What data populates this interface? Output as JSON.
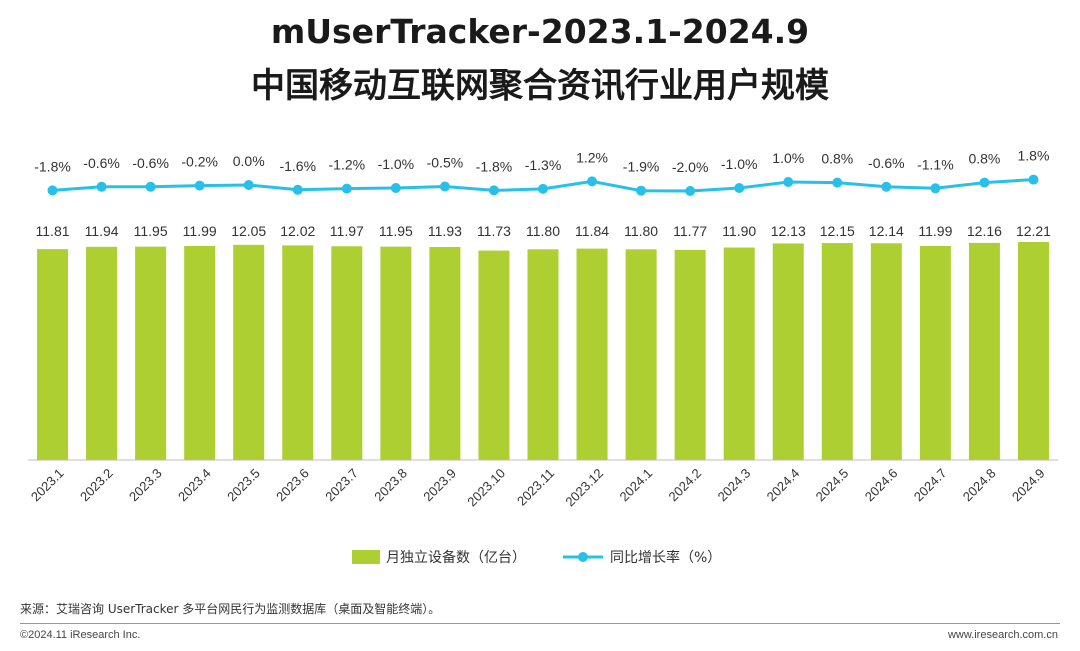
{
  "title_line1": "mUserTracker-2023.1-2024.9",
  "title_line2": "中国移动互联网聚合资讯行业用户规模",
  "source": "来源：艾瑞咨询 UserTracker 多平台网民行为监测数据库（桌面及智能终端）。",
  "copyright": "©2024.11 iResearch Inc.",
  "website": "www.iresearch.com.cn",
  "colors": {
    "bar": "#AECF32",
    "line": "#28C0E8"
  },
  "chart_data": {
    "type": "bar",
    "categories": [
      "2023.1",
      "2023.2",
      "2023.3",
      "2023.4",
      "2023.5",
      "2023.6",
      "2023.7",
      "2023.8",
      "2023.9",
      "2023.10",
      "2023.11",
      "2023.12",
      "2024.1",
      "2024.2",
      "2024.3",
      "2024.4",
      "2024.5",
      "2024.6",
      "2024.7",
      "2024.8",
      "2024.9"
    ],
    "series": [
      {
        "name": "月独立设备数（亿台）",
        "type": "bar",
        "values": [
          11.81,
          11.94,
          11.95,
          11.99,
          12.05,
          12.02,
          11.97,
          11.95,
          11.93,
          11.73,
          11.8,
          11.84,
          11.8,
          11.77,
          11.9,
          12.13,
          12.15,
          12.14,
          11.99,
          12.16,
          12.21
        ],
        "labels": [
          "11.81",
          "11.94",
          "11.95",
          "11.99",
          "12.05",
          "12.02",
          "11.97",
          "11.95",
          "11.93",
          "11.73",
          "11.80",
          "11.84",
          "11.80",
          "11.77",
          "11.90",
          "12.13",
          "12.15",
          "12.14",
          "11.99",
          "12.16",
          "12.21"
        ]
      },
      {
        "name": "同比增长率（%）",
        "type": "line",
        "values": [
          -1.8,
          -0.6,
          -0.6,
          -0.2,
          0.0,
          -1.6,
          -1.2,
          -1.0,
          -0.5,
          -1.8,
          -1.3,
          1.2,
          -1.9,
          -2.0,
          -1.0,
          1.0,
          0.8,
          -0.6,
          -1.1,
          0.8,
          1.8
        ],
        "labels": [
          "-1.8%",
          "-0.6%",
          "-0.6%",
          "-0.2%",
          "0.0%",
          "-1.6%",
          "-1.2%",
          "-1.0%",
          "-0.5%",
          "-1.8%",
          "-1.3%",
          "1.2%",
          "-1.9%",
          "-2.0%",
          "-1.0%",
          "1.0%",
          "0.8%",
          "-0.6%",
          "-1.1%",
          "0.8%",
          "1.8%"
        ]
      }
    ],
    "legend_position": "bottom",
    "grid": false
  }
}
